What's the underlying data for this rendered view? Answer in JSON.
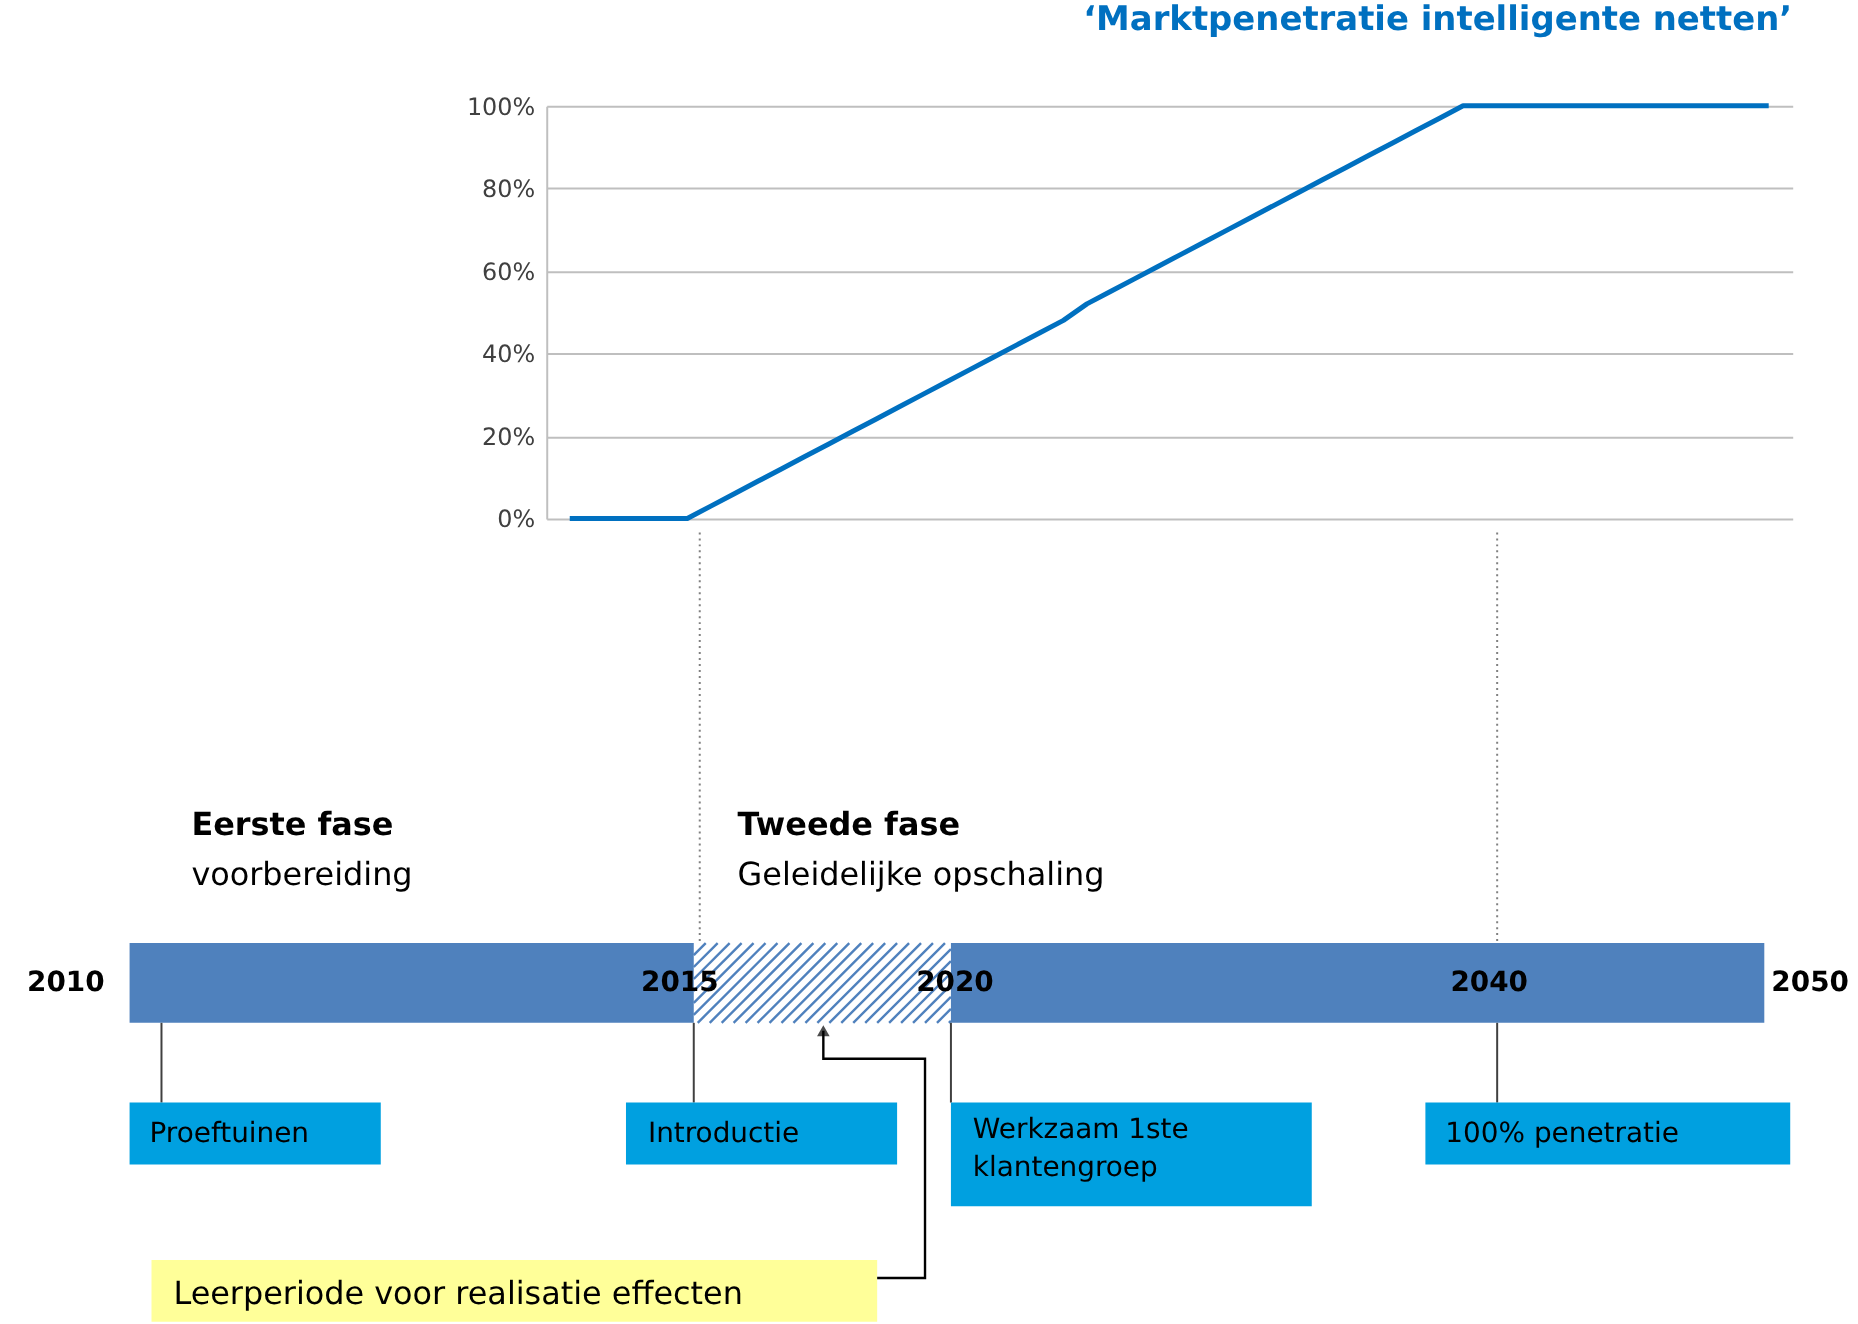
{
  "chart_data": [
    {
      "type": "line",
      "title": "‘Marktpenetratie intelligente netten’",
      "categories": [
        null,
        null,
        null,
        null,
        null,
        null,
        null,
        null,
        null,
        null,
        null,
        null,
        null,
        null,
        null,
        null,
        null,
        null,
        null,
        null,
        null,
        null,
        null,
        null,
        null,
        null,
        null,
        null,
        null,
        null,
        null,
        null,
        null,
        null,
        null,
        null,
        null,
        null,
        null,
        null,
        null,
        null,
        null,
        null,
        null,
        null,
        null,
        null,
        null,
        null,
        null,
        null
      ],
      "series": [
        {
          "color": "#0070c0",
          "values": [
            0,
            0,
            0,
            0,
            0,
            0,
            3,
            6,
            9,
            12,
            15,
            18,
            21,
            24,
            27,
            30,
            33,
            36,
            39,
            42,
            45,
            48,
            52,
            55,
            58,
            61,
            64,
            67,
            70,
            73,
            76,
            79,
            82,
            85,
            88,
            91,
            94,
            97,
            100,
            100,
            100,
            100,
            100,
            100,
            100,
            100,
            100,
            100,
            100,
            100,
            100,
            100
          ]
        }
      ],
      "ylim": [
        0,
        100
      ],
      "yticks": [
        {
          "value": 0,
          "label": "0%"
        },
        {
          "value": 20,
          "label": "20%"
        },
        {
          "value": 40,
          "label": "40%"
        },
        {
          "value": 60,
          "label": "60%"
        },
        {
          "value": 80,
          "label": "80%"
        },
        {
          "value": 100,
          "label": "100%"
        }
      ],
      "grid": "y",
      "tick_labels": "y",
      "line_style": "solid"
    },
    {
      "type": "other",
      "annotations": [
        "Eerste fase",
        "voorbereiding",
        "Tweede fase",
        "Geleidelijke opschaling",
        "2010",
        "2015",
        "2020",
        "2040",
        "2050",
        "Proeftuinen",
        "Introductie",
        "Werkzaam 1ste\nklantengroep",
        "100% penetratie",
        "Leerperiode voor realisatie effecten"
      ]
    }
  ]
}
